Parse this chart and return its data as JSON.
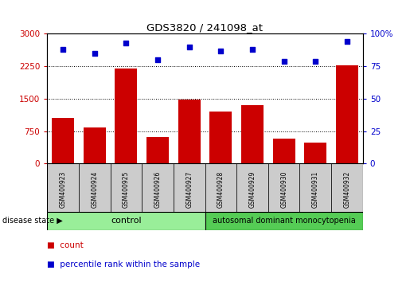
{
  "title": "GDS3820 / 241098_at",
  "samples": [
    "GSM400923",
    "GSM400924",
    "GSM400925",
    "GSM400926",
    "GSM400927",
    "GSM400928",
    "GSM400929",
    "GSM400930",
    "GSM400931",
    "GSM400932"
  ],
  "counts": [
    1050,
    830,
    2200,
    620,
    1480,
    1200,
    1350,
    580,
    480,
    2280
  ],
  "percentiles": [
    88,
    85,
    93,
    80,
    90,
    87,
    88,
    79,
    79,
    94
  ],
  "ylim_left": [
    0,
    3000
  ],
  "ylim_right": [
    0,
    100
  ],
  "yticks_left": [
    0,
    750,
    1500,
    2250,
    3000
  ],
  "yticks_right": [
    0,
    25,
    50,
    75,
    100
  ],
  "bar_color": "#cc0000",
  "scatter_color": "#0000cc",
  "control_color": "#99ee99",
  "disease_color": "#55cc55",
  "control_label": "control",
  "disease_label": "autosomal dominant monocytopenia",
  "n_control": 5,
  "n_disease": 5,
  "legend_count_label": "count",
  "legend_pct_label": "percentile rank within the sample",
  "disease_state_label": "disease state",
  "bg_color": "#ffffff",
  "tick_label_color_left": "#cc0000",
  "tick_label_color_right": "#0000cc",
  "sample_box_color": "#cccccc"
}
